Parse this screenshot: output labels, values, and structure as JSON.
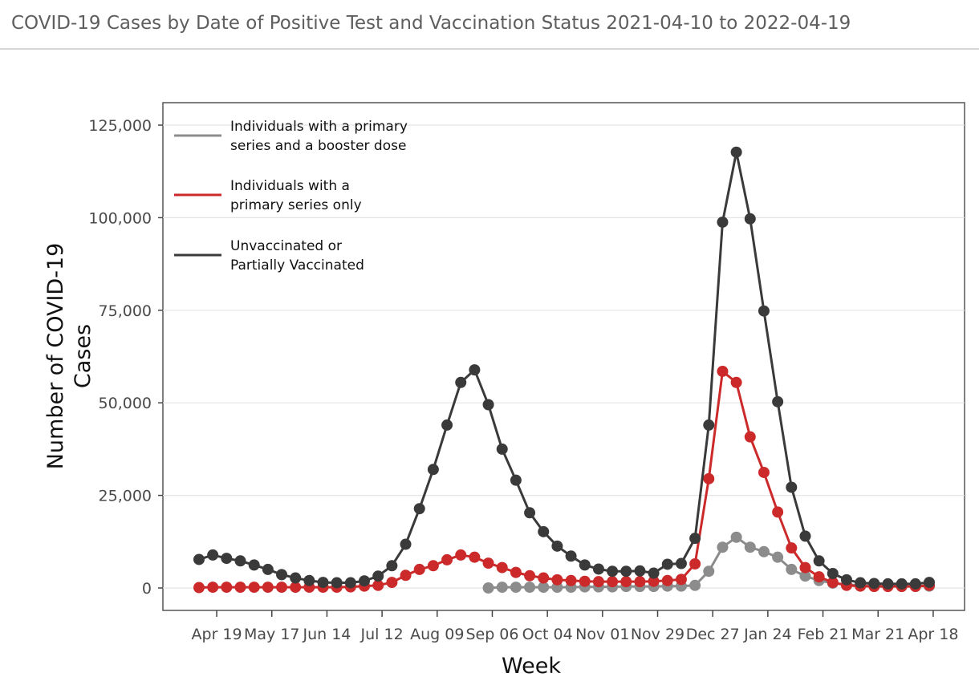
{
  "header": {
    "title": "COVID-19 Cases by Date of Positive Test and Vaccination Status 2021-04-10 to 2022-04-19"
  },
  "chart_data": {
    "type": "line",
    "xlabel": "Week",
    "ylabel": "Number of COVID-19 Cases",
    "ylim": [
      -6000,
      131000
    ],
    "y_ticks": [
      "0",
      "25,000",
      "50,000",
      "75,000",
      "100,000",
      "125,000"
    ],
    "y_tick_values": [
      0,
      25000,
      50000,
      75000,
      100000,
      125000
    ],
    "x": [
      "2021-04-10",
      "2021-04-17",
      "2021-04-24",
      "2021-05-01",
      "2021-05-08",
      "2021-05-15",
      "2021-05-22",
      "2021-05-29",
      "2021-06-05",
      "2021-06-12",
      "2021-06-19",
      "2021-06-26",
      "2021-07-03",
      "2021-07-10",
      "2021-07-17",
      "2021-07-24",
      "2021-07-31",
      "2021-08-07",
      "2021-08-14",
      "2021-08-21",
      "2021-08-28",
      "2021-09-04",
      "2021-09-11",
      "2021-09-18",
      "2021-09-25",
      "2021-10-02",
      "2021-10-09",
      "2021-10-16",
      "2021-10-23",
      "2021-10-30",
      "2021-11-06",
      "2021-11-13",
      "2021-11-20",
      "2021-11-27",
      "2021-12-04",
      "2021-12-11",
      "2021-12-18",
      "2021-12-25",
      "2022-01-01",
      "2022-01-08",
      "2022-01-15",
      "2022-01-22",
      "2022-01-29",
      "2022-02-05",
      "2022-02-12",
      "2022-02-19",
      "2022-02-26",
      "2022-03-05",
      "2022-03-12",
      "2022-03-19",
      "2022-03-26",
      "2022-04-02",
      "2022-04-09",
      "2022-04-16"
    ],
    "x_ticks": [
      "Apr 19",
      "May 17",
      "Jun 14",
      "Jul 12",
      "Aug 09",
      "Sep 06",
      "Oct 04",
      "Nov 01",
      "Nov 29",
      "Dec 27",
      "Jan 24",
      "Feb 21",
      "Mar 21",
      "Apr 18"
    ],
    "x_tick_dates": [
      "2021-04-19",
      "2021-05-17",
      "2021-06-14",
      "2021-07-12",
      "2021-08-09",
      "2021-09-06",
      "2021-10-04",
      "2021-11-01",
      "2021-11-29",
      "2021-12-27",
      "2022-01-24",
      "2022-02-21",
      "2022-03-21",
      "2022-04-18"
    ],
    "legend": "top-left",
    "grid": true,
    "series": [
      {
        "name": "Individuals with a primary series and a booster dose",
        "color": "#8c8c8c",
        "values": [
          null,
          null,
          null,
          null,
          null,
          null,
          null,
          null,
          null,
          null,
          null,
          null,
          null,
          null,
          null,
          null,
          null,
          null,
          null,
          null,
          null,
          0,
          200,
          200,
          200,
          200,
          200,
          200,
          300,
          300,
          300,
          400,
          400,
          400,
          500,
          500,
          700,
          4500,
          11000,
          13700,
          11000,
          9800,
          8300,
          5000,
          3200,
          2000,
          1300,
          900,
          700,
          600,
          600,
          600,
          500,
          500
        ]
      },
      {
        "name": "Individuals with a primary series only",
        "color": "#cc2a2a",
        "values": [
          100,
          200,
          200,
          200,
          200,
          200,
          200,
          200,
          200,
          200,
          200,
          300,
          500,
          700,
          1500,
          3400,
          5000,
          6000,
          7600,
          8900,
          8300,
          6700,
          5500,
          4200,
          3300,
          2700,
          2200,
          2000,
          1800,
          1700,
          1700,
          1700,
          1700,
          1800,
          2000,
          2300,
          6500,
          29500,
          58500,
          55500,
          40800,
          31200,
          20500,
          10800,
          5500,
          3000,
          1500,
          700,
          500,
          400,
          400,
          400,
          400,
          700
        ]
      },
      {
        "name": "Unvaccinated or Partially Vaccinated",
        "color": "#3a3a3a",
        "values": [
          7700,
          8900,
          8000,
          7300,
          6200,
          5000,
          3600,
          2700,
          2000,
          1500,
          1400,
          1400,
          1900,
          3200,
          6000,
          11800,
          21400,
          32000,
          44000,
          55500,
          58900,
          49500,
          37500,
          29100,
          20300,
          15200,
          11300,
          8600,
          6200,
          5100,
          4500,
          4500,
          4600,
          4000,
          6400,
          6600,
          13400,
          44000,
          98800,
          117700,
          99700,
          74800,
          50300,
          27200,
          14000,
          7300,
          3900,
          2200,
          1400,
          1200,
          1100,
          1100,
          1100,
          1500
        ]
      }
    ]
  }
}
